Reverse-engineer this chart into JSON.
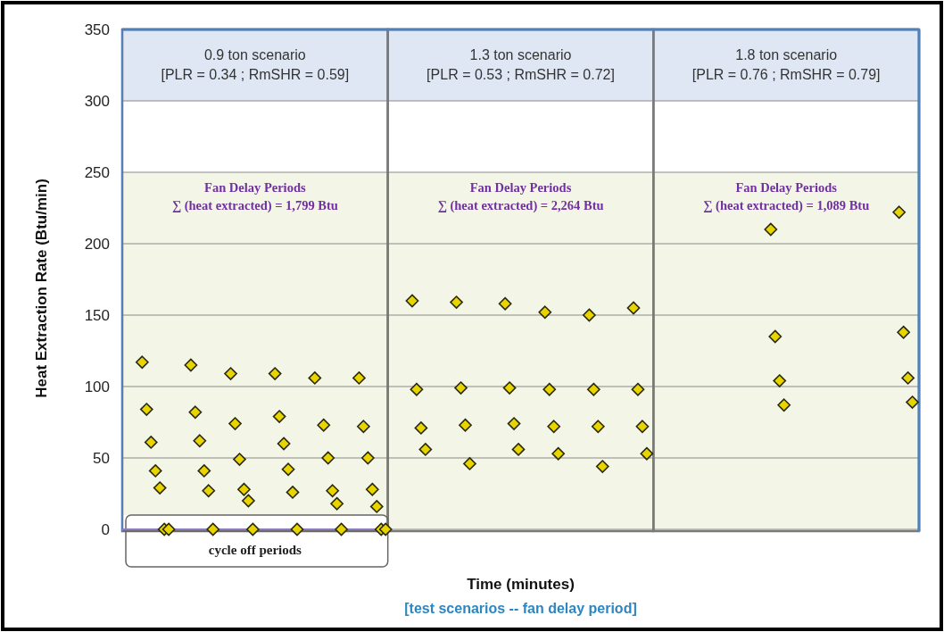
{
  "chart_data": {
    "type": "scatter",
    "xlabel": "Time (minutes)",
    "ylabel": "Heat Extraction Rate (Btu/min)",
    "categories": [
      null,
      null,
      null,
      null,
      null,
      null,
      null,
      null,
      null,
      null,
      null,
      null,
      null,
      null,
      null,
      null,
      null,
      null,
      null,
      null,
      null,
      null,
      null,
      null,
      null,
      null,
      null,
      null,
      null,
      null,
      null,
      null,
      null,
      null,
      null,
      null,
      null,
      null,
      null,
      null,
      null,
      null,
      null,
      null,
      null,
      null,
      null,
      null,
      null,
      null,
      null,
      null,
      null,
      null,
      null,
      null,
      null,
      null,
      null,
      null,
      null,
      null,
      null,
      null,
      null,
      null,
      null,
      null,
      null,
      null,
      null,
      null,
      null,
      null,
      null,
      null,
      null,
      null,
      null,
      null,
      null,
      null,
      null,
      null,
      null,
      null,
      null,
      null,
      null,
      null,
      null,
      null,
      null,
      null,
      null,
      null,
      null,
      null,
      null,
      null,
      null,
      null,
      null,
      null,
      null,
      null,
      null,
      null,
      null,
      null,
      null,
      null,
      null,
      null,
      null,
      null,
      null,
      null,
      null,
      null,
      null,
      null,
      null,
      null,
      null,
      null,
      null,
      null,
      null,
      null,
      null,
      null,
      null,
      null,
      null,
      null,
      null,
      null,
      null,
      null,
      null,
      null,
      null,
      null,
      null,
      null,
      null,
      null,
      null,
      null,
      null,
      null,
      null,
      null,
      null,
      null,
      null,
      null,
      null,
      null,
      null,
      null,
      null,
      null,
      null,
      null,
      null,
      null,
      null,
      null,
      null,
      null,
      null,
      null,
      null,
      null,
      null,
      null,
      null,
      null
    ],
    "series": [
      {
        "color": "#e8d500",
        "values": [
          null,
          null,
          null,
          null,
          117,
          84,
          61,
          41,
          29,
          0,
          0,
          null,
          null,
          null,
          null,
          115,
          82,
          62,
          41,
          27,
          0,
          null,
          null,
          null,
          109,
          74,
          49,
          28,
          20,
          0,
          null,
          null,
          null,
          null,
          109,
          79,
          60,
          42,
          26,
          0,
          null,
          null,
          null,
          106,
          null,
          73,
          50,
          27,
          18,
          0,
          null,
          null,
          null,
          106,
          72,
          50,
          28,
          16,
          0,
          0,
          null,
          null,
          null,
          null,
          null,
          160,
          98,
          71,
          56,
          null,
          null,
          null,
          null,
          null,
          null,
          159,
          99,
          73,
          46,
          null,
          null,
          null,
          null,
          null,
          null,
          null,
          158,
          99,
          74,
          56,
          null,
          null,
          null,
          null,
          null,
          152,
          98,
          72,
          53,
          null,
          null,
          null,
          null,
          null,
          null,
          150,
          98,
          72,
          44,
          null,
          null,
          null,
          null,
          null,
          null,
          155,
          98,
          72,
          53,
          null,
          null,
          null,
          null,
          null,
          null,
          null,
          null,
          null,
          null,
          null,
          null,
          null,
          null,
          null,
          null,
          null,
          null,
          null,
          null,
          null,
          null,
          null,
          null,
          null,
          null,
          null,
          210,
          135,
          104,
          87,
          null,
          null,
          null,
          null,
          null,
          null,
          null,
          null,
          null,
          null,
          null,
          null,
          null,
          null,
          null,
          null,
          null,
          null,
          null,
          null,
          null,
          null,
          null,
          null,
          null,
          222,
          138,
          106,
          89,
          null
        ]
      }
    ],
    "ylim": [
      0,
      350
    ],
    "yticks": [
      0,
      50,
      100,
      150,
      200,
      250,
      300,
      350
    ],
    "grid": "y",
    "tick_labels": "y",
    "marker": "diamond",
    "annotations": [
      "0.9 ton scenario\n[PLR = 0.34 ; RmSHR = 0.59]",
      "1.3 ton scenario\n[PLR = 0.53 ; RmSHR = 0.72]",
      "1.8 ton scenario\n[PLR = 0.76 ; RmSHR = 0.79]",
      "Fan Delay Periods\n∑ (heat extracted) = 1,799 Btu",
      "Fan Delay Periods\n∑ (heat extracted) = 2,264 Btu",
      "Fan Delay Periods\n∑ (heat extracted) = 1,089 Btu",
      "cycle off periods",
      "[test scenarios -- fan delay period]"
    ]
  }
}
